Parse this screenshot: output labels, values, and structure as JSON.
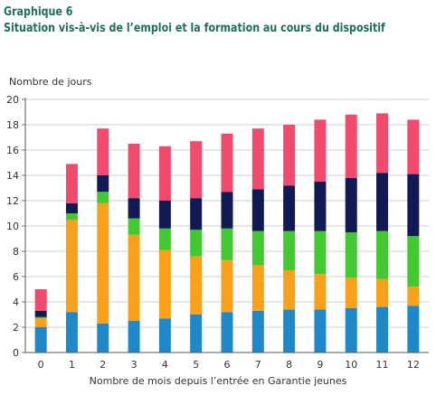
{
  "header": {
    "title": "Graphique 6",
    "subtitle": "Situation vis-à-vis de l’emploi et la formation au cours du dispositif"
  },
  "chart_data": {
    "type": "bar",
    "stacked": true,
    "title": "Graphique 6",
    "subtitle": "Situation vis-à-vis de l’emploi et la formation au cours du dispositif",
    "ylabel": "Nombre de jours",
    "xlabel": "Nombre de mois depuis l’entrée en Garantie jeunes",
    "categories": [
      "0",
      "1",
      "2",
      "3",
      "4",
      "5",
      "6",
      "7",
      "8",
      "9",
      "10",
      "11",
      "12"
    ],
    "ylim": [
      0,
      20
    ],
    "yticks": [
      0,
      2,
      4,
      6,
      8,
      10,
      12,
      14,
      16,
      18,
      20
    ],
    "grid": "horizontal",
    "legend": "none",
    "series": [
      {
        "color": "#1e88c8",
        "values": [
          2.0,
          3.2,
          2.3,
          2.5,
          2.7,
          3.0,
          3.2,
          3.3,
          3.4,
          3.4,
          3.5,
          3.6,
          3.7
        ]
      },
      {
        "color": "#f9a11b",
        "values": [
          0.7,
          7.3,
          9.5,
          6.8,
          5.4,
          4.6,
          4.1,
          3.6,
          3.1,
          2.8,
          2.4,
          2.2,
          1.5
        ]
      },
      {
        "color": "#43c832",
        "values": [
          0.1,
          0.5,
          0.9,
          1.3,
          1.7,
          2.1,
          2.5,
          2.7,
          3.1,
          3.4,
          3.6,
          3.8,
          4.0
        ]
      },
      {
        "color": "#111a52",
        "values": [
          0.5,
          0.8,
          1.3,
          1.6,
          2.2,
          2.5,
          2.9,
          3.3,
          3.6,
          3.9,
          4.3,
          4.6,
          4.9
        ]
      },
      {
        "color": "#f04a6c",
        "values": [
          1.7,
          3.1,
          3.7,
          4.3,
          4.3,
          4.5,
          4.6,
          4.8,
          4.8,
          4.9,
          5.0,
          4.7,
          4.3
        ]
      }
    ]
  }
}
